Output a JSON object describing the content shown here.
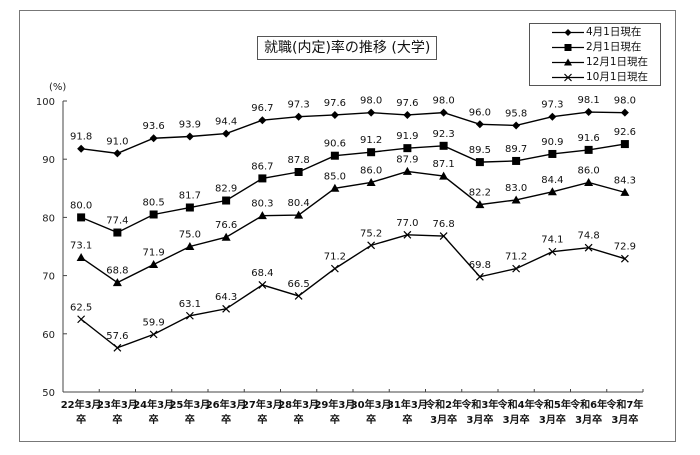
{
  "title": "就職(内定)率の推移 (大学)",
  "y_unit": "(%)",
  "legend": [
    {
      "label": "4月1日現在",
      "marker": "diamond"
    },
    {
      "label": "2月1日現在",
      "marker": "square"
    },
    {
      "label": "12月1日現在",
      "marker": "triangle"
    },
    {
      "label": "10月1日現在",
      "marker": "cross"
    }
  ],
  "chart_data": {
    "type": "line",
    "title": "就職(内定)率の推移 (大学)",
    "xlabel": "",
    "ylabel": "(%)",
    "ylim": [
      50,
      100
    ],
    "yticks": [
      50,
      60,
      70,
      80,
      90,
      100
    ],
    "grid": false,
    "legend_position": "top-right",
    "categories": [
      [
        "22年3月",
        "卒"
      ],
      [
        "23年3月",
        "卒"
      ],
      [
        "24年3月",
        "卒"
      ],
      [
        "25年3月",
        "卒"
      ],
      [
        "26年3月",
        "卒"
      ],
      [
        "27年3月",
        "卒"
      ],
      [
        "28年3月",
        "卒"
      ],
      [
        "29年3月",
        "卒"
      ],
      [
        "30年3月",
        "卒"
      ],
      [
        "31年3月",
        "卒"
      ],
      [
        "令和2年",
        "3月卒"
      ],
      [
        "令和3年",
        "3月卒"
      ],
      [
        "令和4年",
        "3月卒"
      ],
      [
        "令和5年",
        "3月卒"
      ],
      [
        "令和6年",
        "3月卒"
      ],
      [
        "令和7年",
        "3月卒"
      ]
    ],
    "series": [
      {
        "name": "4月1日現在",
        "marker": "diamond",
        "values": [
          91.8,
          91.0,
          93.6,
          93.9,
          94.4,
          96.7,
          97.3,
          97.6,
          98.0,
          97.6,
          98.0,
          96.0,
          95.8,
          97.3,
          98.1,
          98.0
        ]
      },
      {
        "name": "2月1日現在",
        "marker": "square",
        "values": [
          80.0,
          77.4,
          80.5,
          81.7,
          82.9,
          86.7,
          87.8,
          90.6,
          91.2,
          91.9,
          92.3,
          89.5,
          89.7,
          90.9,
          91.6,
          92.6
        ]
      },
      {
        "name": "12月1日現在",
        "marker": "triangle",
        "values": [
          73.1,
          68.8,
          71.9,
          75.0,
          76.6,
          80.3,
          80.4,
          85.0,
          86.0,
          87.9,
          87.1,
          82.2,
          83.0,
          84.4,
          86.0,
          84.3
        ]
      },
      {
        "name": "10月1日現在",
        "marker": "cross",
        "values": [
          62.5,
          57.6,
          59.9,
          63.1,
          64.3,
          68.4,
          66.5,
          71.2,
          75.2,
          77.0,
          76.8,
          69.8,
          71.2,
          74.1,
          74.8,
          72.9
        ]
      }
    ]
  }
}
